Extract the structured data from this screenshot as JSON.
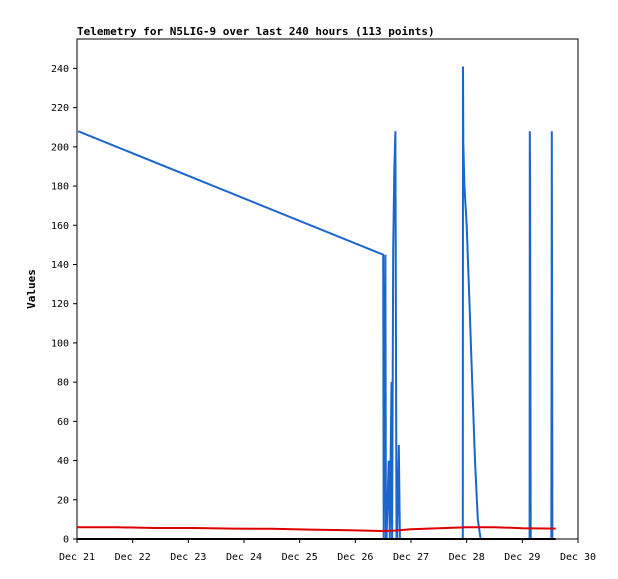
{
  "chart_data": {
    "type": "line",
    "title": "Telemetry for N5LIG-9 over last 240 hours (113 points)",
    "xlabel": "",
    "ylabel": "Values",
    "xlim": [
      21.0,
      30.0
    ],
    "ylim": [
      0,
      255
    ],
    "x_ticks": [
      "Dec 21",
      "Dec 22",
      "Dec 23",
      "Dec 24",
      "Dec 25",
      "Dec 26",
      "Dec 27",
      "Dec 28",
      "Dec 29",
      "Dec 30"
    ],
    "y_ticks": [
      0,
      20,
      40,
      60,
      80,
      100,
      120,
      140,
      160,
      180,
      200,
      220,
      240
    ],
    "grid": false,
    "legend": "none",
    "x_units": "day of December",
    "series": [
      {
        "color": "#1a66cc",
        "x": [
          21.02,
          26.5,
          26.51,
          26.52,
          26.53,
          26.54,
          26.55,
          26.56,
          26.6,
          26.62,
          26.65,
          26.66,
          26.68,
          26.7,
          26.72,
          26.74,
          26.75,
          26.78,
          26.8,
          26.82,
          27.93,
          27.935,
          27.94,
          27.95,
          27.96,
          28.0,
          28.05,
          28.1,
          28.15,
          28.2,
          28.25,
          28.3,
          29.13,
          29.135,
          29.14,
          29.15,
          29.52,
          29.525,
          29.53,
          29.54
        ],
        "values": [
          208,
          145,
          0,
          97,
          72,
          145,
          0,
          0,
          40,
          0,
          80,
          0,
          148,
          188,
          208,
          0,
          0,
          48,
          0,
          0,
          0,
          241,
          202,
          190,
          180,
          160,
          120,
          80,
          40,
          10,
          0,
          0,
          0,
          208,
          184,
          0,
          0,
          97,
          208,
          0
        ]
      },
      {
        "color": "#dd0000",
        "x": [
          21.0,
          21.7,
          22.4,
          23.1,
          23.8,
          24.5,
          25.2,
          25.9,
          26.5,
          26.7,
          27.0,
          27.5,
          28.0,
          28.5,
          29.0,
          29.6
        ],
        "values": [
          6,
          6,
          5.6,
          5.6,
          5.3,
          5.2,
          4.8,
          4.5,
          4.1,
          4.3,
          5.0,
          5.5,
          6.0,
          6.0,
          5.5,
          5.3
        ]
      },
      {
        "color": "#000000",
        "x": [
          21.0,
          29.6
        ],
        "values": [
          0,
          0
        ]
      }
    ]
  }
}
